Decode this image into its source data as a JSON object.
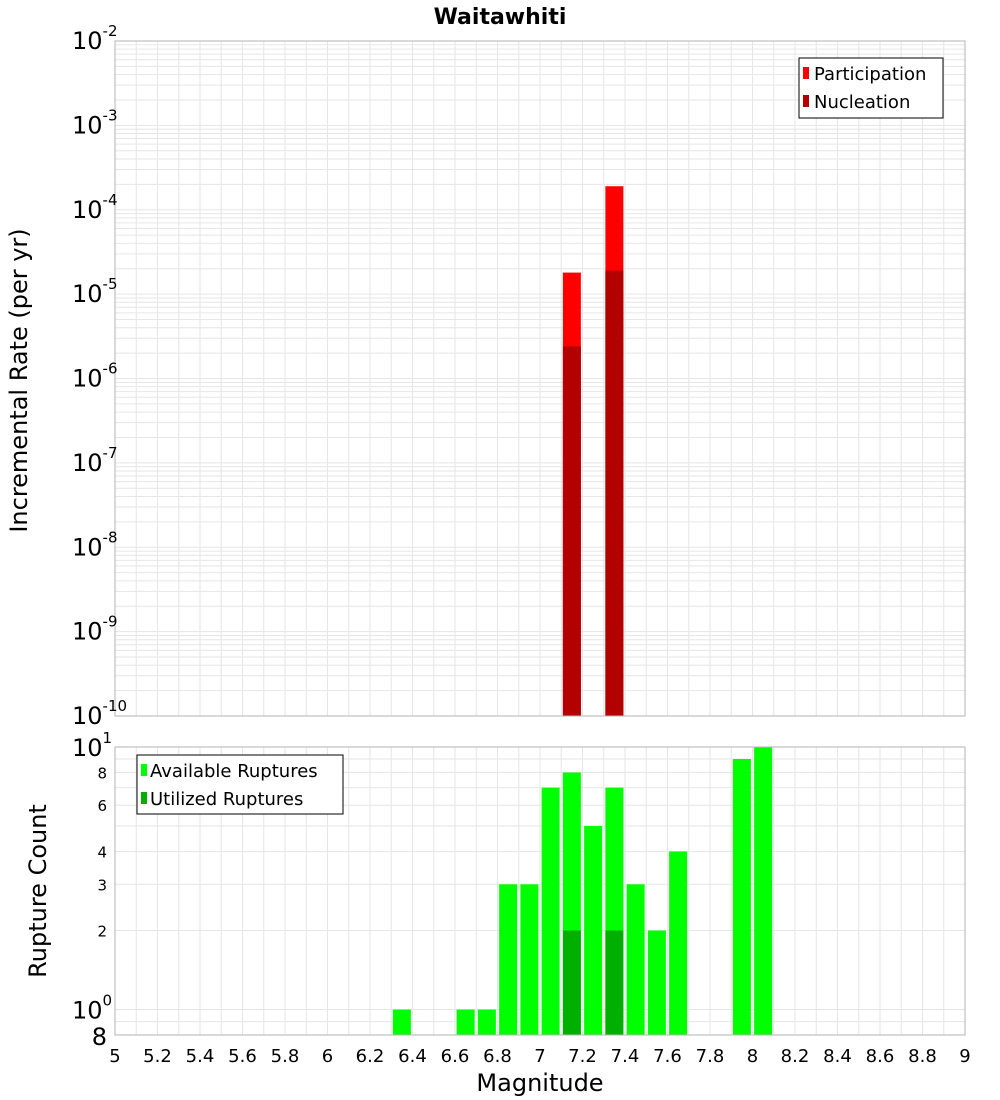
{
  "title": "Waitawhiti",
  "colors": {
    "participation": "#ff0000",
    "nucleation": "#b30000",
    "available": "#00ff00",
    "utilized": "#00b000",
    "grid": "#e6e6e6",
    "frame": "#b3b3b3"
  },
  "chart_data": [
    {
      "type": "bar",
      "ylabel": "Incremental Rate (per yr)",
      "yscale": "log",
      "ylim": [
        1e-10,
        0.01
      ],
      "xlim": [
        5,
        9
      ],
      "grid": true,
      "legend_position": "top-right",
      "y_tick_labels": [
        {
          "base": "10",
          "exp": "-10"
        },
        {
          "base": "10",
          "exp": "-9"
        },
        {
          "base": "10",
          "exp": "-8"
        },
        {
          "base": "10",
          "exp": "-7"
        },
        {
          "base": "10",
          "exp": "-6"
        },
        {
          "base": "10",
          "exp": "-5"
        },
        {
          "base": "10",
          "exp": "-4"
        },
        {
          "base": "10",
          "exp": "-3"
        },
        {
          "base": "10",
          "exp": "-2"
        }
      ],
      "series": [
        {
          "name": "Participation",
          "x": [
            7.15,
            7.35
          ],
          "values": [
            1.8e-05,
            0.00019
          ]
        },
        {
          "name": "Nucleation",
          "x": [
            7.15,
            7.35
          ],
          "values": [
            2.4e-06,
            1.9e-05
          ]
        }
      ]
    },
    {
      "type": "bar",
      "xlabel": "Magnitude",
      "ylabel": "Rupture Count",
      "yscale": "log",
      "ylim": [
        0.8,
        10
      ],
      "xlim": [
        5,
        9
      ],
      "grid": true,
      "legend_position": "top-left",
      "x_tick_labels": [
        "5",
        "5.2",
        "5.4",
        "5.6",
        "5.8",
        "6",
        "6.2",
        "6.4",
        "6.6",
        "6.8",
        "7",
        "7.2",
        "7.4",
        "7.6",
        "7.8",
        "8",
        "8.2",
        "8.4",
        "8.6",
        "8.8",
        "9"
      ],
      "y_tick_labels_minor": [
        {
          "value": 2,
          "label": "2"
        },
        {
          "value": 3,
          "label": "3"
        },
        {
          "value": 4,
          "label": "4"
        },
        {
          "value": 6,
          "label": "6"
        },
        {
          "value": 8,
          "label": "8"
        }
      ],
      "y_tick_labels_major": [
        {
          "value": 1,
          "base": "10",
          "exp": "0"
        },
        {
          "value": 10,
          "base": "10",
          "exp": "1"
        }
      ],
      "y_min_label": "8",
      "series": [
        {
          "name": "Available Ruptures",
          "x": [
            6.35,
            6.65,
            6.75,
            6.85,
            6.95,
            7.05,
            7.15,
            7.25,
            7.35,
            7.45,
            7.55,
            7.65,
            7.95,
            8.05
          ],
          "values": [
            1,
            1,
            1,
            3,
            3,
            7,
            8,
            5,
            7,
            3,
            2,
            4,
            9,
            10
          ]
        },
        {
          "name": "Utilized Ruptures",
          "x": [
            7.15,
            7.35
          ],
          "values": [
            2,
            2
          ]
        }
      ]
    }
  ]
}
